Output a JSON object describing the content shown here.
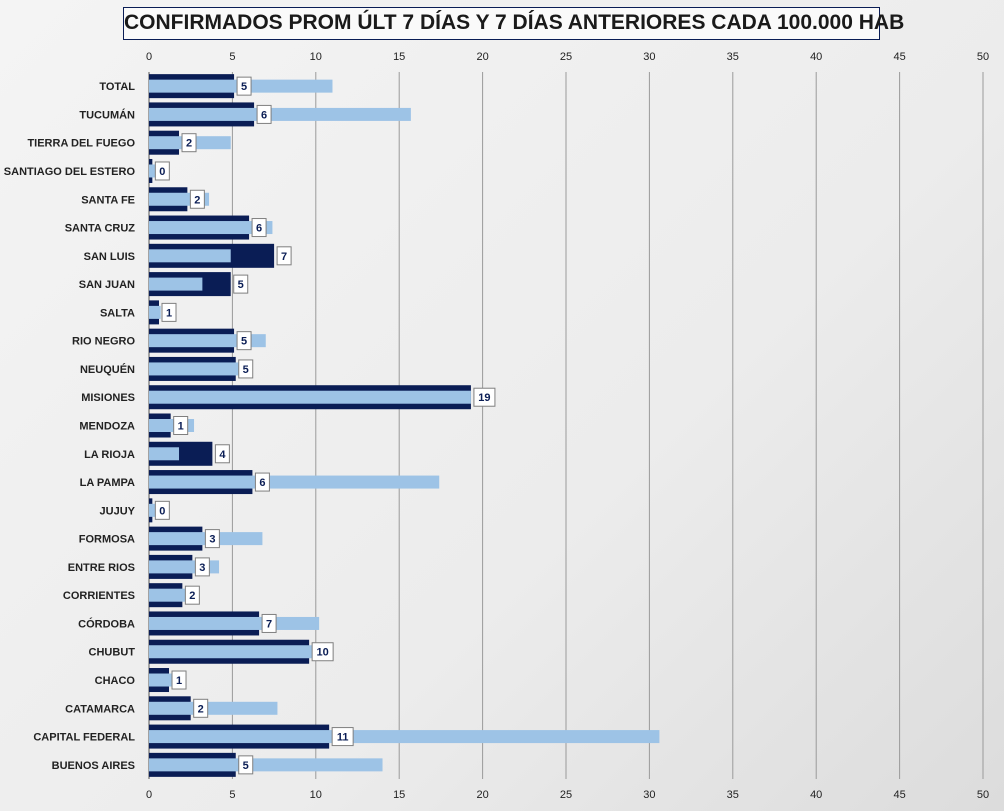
{
  "chart_data": {
    "type": "bar",
    "orientation": "horizontal",
    "title": "CONFIRMADOS PROM ÚLT 7 DÍAS Y 7 DÍAS ANTERIORES CADA 100.000 HAB",
    "xlim": [
      0,
      50
    ],
    "xticks": [
      0,
      5,
      10,
      15,
      20,
      25,
      30,
      35,
      40,
      45,
      50
    ],
    "grid": true,
    "categories": [
      "TOTAL",
      "TUCUMÁN",
      "TIERRA  DEL FUEGO",
      "SANTIAGO  DEL ESTERO",
      "SANTA FE",
      "SANTA CRUZ",
      "SAN LUIS",
      "SAN JUAN",
      "SALTA",
      "RIO NEGRO",
      "NEUQUÉN",
      "MISIONES",
      "MENDOZA",
      "LA RIOJA",
      "LA PAMPA",
      "JUJUY",
      "FORMOSA",
      "ENTRE  RIOS",
      "CORRIENTES",
      "CÓRDOBA",
      "CHUBUT",
      "CHACO",
      "CATAMARCA",
      "CAPITAL FEDERAL",
      "BUENOS  AIRES"
    ],
    "series": [
      {
        "color": "#0a1d55",
        "values": [
          5.1,
          6.3,
          1.8,
          0.2,
          2.3,
          6.0,
          7.5,
          4.9,
          0.6,
          5.1,
          5.2,
          19.3,
          1.3,
          3.8,
          6.2,
          0.2,
          3.2,
          2.6,
          2.0,
          6.6,
          9.6,
          1.2,
          2.5,
          10.8,
          5.2
        ]
      },
      {
        "color": "#9dc3e6",
        "values": [
          11.0,
          15.7,
          4.9,
          0.4,
          3.6,
          7.4,
          4.9,
          3.2,
          0.7,
          7.0,
          5.5,
          19.3,
          2.7,
          1.8,
          17.4,
          0.4,
          6.8,
          4.2,
          2.2,
          10.2,
          9.8,
          1.4,
          7.7,
          30.6,
          14.0
        ]
      }
    ],
    "data_labels": [
      "5",
      "6",
      "2",
      "0",
      "2",
      "6",
      "7",
      "5",
      "1",
      "5",
      "5",
      "19",
      "1",
      "4",
      "6",
      "0",
      "3",
      "3",
      "2",
      "7",
      "10",
      "1",
      "2",
      "11",
      "5"
    ]
  }
}
